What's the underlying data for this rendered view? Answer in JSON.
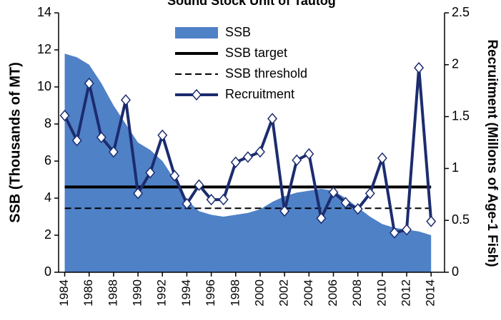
{
  "chart_data": {
    "type": "line",
    "title": "Sound Stock Unit of Tautog",
    "ylabel": "SSB (Thousands of MT)",
    "y2label": "Recruitment (Millons of Age-1 Fish)",
    "x": [
      1984,
      1985,
      1986,
      1987,
      1988,
      1989,
      1990,
      1991,
      1992,
      1993,
      1994,
      1995,
      1996,
      1997,
      1998,
      1999,
      2000,
      2001,
      2002,
      2003,
      2004,
      2005,
      2006,
      2007,
      2008,
      2009,
      2010,
      2011,
      2012,
      2013,
      2014
    ],
    "xlim": [
      1983.5,
      2015.1
    ],
    "xticks": [
      1984,
      1986,
      1988,
      1990,
      1992,
      1994,
      1996,
      1998,
      2000,
      2002,
      2004,
      2006,
      2008,
      2010,
      2012,
      2014
    ],
    "ylim": [
      0,
      14
    ],
    "yticks": [
      0,
      2,
      4,
      6,
      8,
      10,
      12,
      14
    ],
    "y2lim": [
      0,
      2.5
    ],
    "y2ticks": [
      0,
      0.5,
      1,
      1.5,
      2,
      2.5
    ],
    "series": [
      {
        "name": "SSB",
        "type": "area",
        "color": "#4f81c7",
        "values": [
          11.8,
          11.6,
          11.2,
          10.2,
          9.0,
          8.0,
          7.0,
          6.6,
          6.0,
          5.0,
          3.9,
          3.3,
          3.1,
          3.0,
          3.1,
          3.2,
          3.4,
          3.8,
          4.1,
          4.3,
          4.4,
          4.5,
          4.4,
          4.0,
          3.5,
          3.0,
          2.6,
          2.4,
          2.3,
          2.2,
          2.0
        ]
      },
      {
        "name": "Recruitment",
        "type": "line",
        "axis": "y2",
        "color": "#1c2c6e",
        "values": [
          1.51,
          1.27,
          1.82,
          1.3,
          1.16,
          1.66,
          0.76,
          0.96,
          1.32,
          0.93,
          0.66,
          0.84,
          0.7,
          0.7,
          1.06,
          1.11,
          1.16,
          1.48,
          0.59,
          1.08,
          1.14,
          0.52,
          0.77,
          0.67,
          0.61,
          0.76,
          1.1,
          0.38,
          0.41,
          1.97,
          0.49
        ]
      }
    ],
    "reference_lines": [
      {
        "name": "SSB target",
        "value": 4.6,
        "style": "solid",
        "color": "#000000"
      },
      {
        "name": "SSB threshold",
        "value": 3.45,
        "style": "dashed",
        "color": "#000000"
      }
    ]
  }
}
